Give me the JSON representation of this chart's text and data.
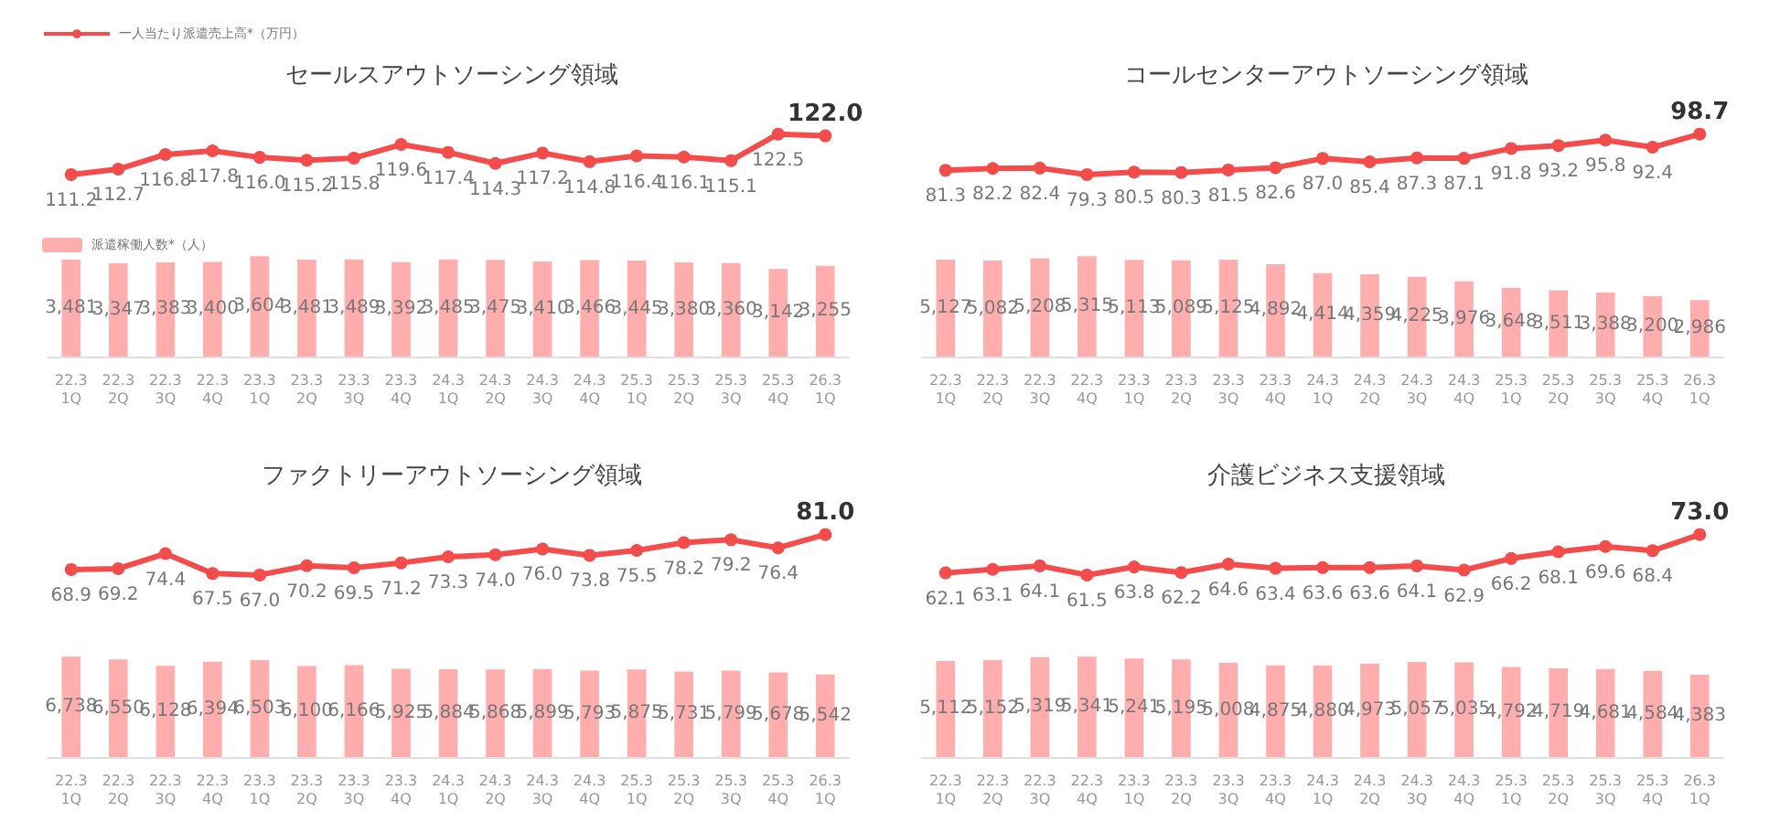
{
  "chart_data": [
    {
      "type": "line",
      "title": "セールスアウトソーシング領域",
      "categories": [
        null,
        null,
        null,
        null,
        null,
        null,
        null,
        null,
        null,
        null,
        null,
        null,
        null,
        null,
        null,
        null,
        null
      ],
      "legend": "top left",
      "tick_labels": false,
      "series": [
        {
          "name": "一人当たり派遣売上高*（万円）",
          "color": "#f44b4b",
          "marker": "circle",
          "values": [
            111.2,
            112.7,
            116.8,
            117.8,
            116.0,
            115.2,
            115.8,
            119.6,
            117.4,
            114.3,
            117.2,
            114.8,
            116.4,
            116.1,
            115.1,
            122.5,
            122.0
          ],
          "value_labels": [
            "111.2",
            "112.7",
            "116.8",
            "117.8",
            "116.0",
            "115.2",
            "115.8",
            "119.6",
            "117.4",
            "114.3",
            "117.2",
            "114.8",
            "116.4",
            "116.1",
            "115.1",
            "122.5",
            "122.0"
          ]
        }
      ]
    },
    {
      "type": "bar",
      "categories": [
        "22.3\n1Q",
        "22.3\n2Q",
        "22.3\n3Q",
        "22.3\n4Q",
        "23.3\n1Q",
        "23.3\n2Q",
        "23.3\n3Q",
        "23.3\n4Q",
        "24.3\n1Q",
        "24.3\n2Q",
        "24.3\n3Q",
        "24.3\n4Q",
        "25.3\n1Q",
        "25.3\n2Q",
        "25.3\n3Q",
        "25.3\n4Q",
        "26.3\n1Q"
      ],
      "legend": "top left",
      "tick_labels": "x",
      "series": [
        {
          "name": "派遣稼働人数*（人）",
          "color": "#ffadad",
          "values": [
            3481,
            3347,
            3383,
            3400,
            3604,
            3481,
            3489,
            3392,
            3485,
            3475,
            3410,
            3466,
            3445,
            3380,
            3360,
            3142,
            3255
          ],
          "value_labels": [
            "3,481",
            "3,347",
            "3,383",
            "3,400",
            "3,604",
            "3,481",
            "3,489",
            "3,392",
            "3,485",
            "3,475",
            "3,410",
            "3,466",
            "3,445",
            "3,380",
            "3,360",
            "3,142",
            "3,255"
          ]
        }
      ]
    },
    {
      "type": "line",
      "title": "コールセンターアウトソーシング領域",
      "categories": [
        null,
        null,
        null,
        null,
        null,
        null,
        null,
        null,
        null,
        null,
        null,
        null,
        null,
        null,
        null,
        null,
        null
      ],
      "tick_labels": false,
      "series": [
        {
          "color": "#f44b4b",
          "marker": "circle",
          "values": [
            81.3,
            82.2,
            82.4,
            79.3,
            80.5,
            80.3,
            81.5,
            82.6,
            87.0,
            85.4,
            87.3,
            87.1,
            91.8,
            93.2,
            95.8,
            92.4,
            98.7
          ],
          "value_labels": [
            "81.3",
            "82.2",
            "82.4",
            "79.3",
            "80.5",
            "80.3",
            "81.5",
            "82.6",
            "87.0",
            "85.4",
            "87.3",
            "87.1",
            "91.8",
            "93.2",
            "95.8",
            "92.4",
            "98.7"
          ]
        }
      ]
    },
    {
      "type": "bar",
      "categories": [
        "22.3\n1Q",
        "22.3\n2Q",
        "22.3\n3Q",
        "22.3\n4Q",
        "23.3\n1Q",
        "23.3\n2Q",
        "23.3\n3Q",
        "23.3\n4Q",
        "24.3\n1Q",
        "24.3\n2Q",
        "24.3\n3Q",
        "24.3\n4Q",
        "25.3\n1Q",
        "25.3\n2Q",
        "25.3\n3Q",
        "25.3\n4Q",
        "26.3\n1Q"
      ],
      "tick_labels": "x",
      "series": [
        {
          "color": "#ffadad",
          "values": [
            5127,
            5082,
            5208,
            5315,
            5113,
            5089,
            5125,
            4892,
            4414,
            4359,
            4225,
            3976,
            3648,
            3511,
            3388,
            3200,
            2986
          ],
          "value_labels": [
            "5,127",
            "5,082",
            "5,208",
            "5,315",
            "5,113",
            "5,089",
            "5,125",
            "4,892",
            "4,414",
            "4,359",
            "4,225",
            "3,976",
            "3,648",
            "3,511",
            "3,388",
            "3,200",
            "2,986"
          ]
        }
      ]
    },
    {
      "type": "line",
      "title": "ファクトリーアウトソーシング領域",
      "categories": [
        null,
        null,
        null,
        null,
        null,
        null,
        null,
        null,
        null,
        null,
        null,
        null,
        null,
        null,
        null,
        null,
        null
      ],
      "tick_labels": false,
      "series": [
        {
          "color": "#f44b4b",
          "marker": "circle",
          "values": [
            68.9,
            69.2,
            74.4,
            67.5,
            67.0,
            70.2,
            69.5,
            71.2,
            73.3,
            74.0,
            76.0,
            73.8,
            75.5,
            78.2,
            79.2,
            76.4,
            81.0
          ],
          "value_labels": [
            "68.9",
            "69.2",
            "74.4",
            "67.5",
            "67.0",
            "70.2",
            "69.5",
            "71.2",
            "73.3",
            "74.0",
            "76.0",
            "73.8",
            "75.5",
            "78.2",
            "79.2",
            "76.4",
            "81.0"
          ]
        }
      ]
    },
    {
      "type": "bar",
      "categories": [
        "22.3\n1Q",
        "22.3\n2Q",
        "22.3\n3Q",
        "22.3\n4Q",
        "23.3\n1Q",
        "23.3\n2Q",
        "23.3\n3Q",
        "23.3\n4Q",
        "24.3\n1Q",
        "24.3\n2Q",
        "24.3\n3Q",
        "24.3\n4Q",
        "25.3\n1Q",
        "25.3\n2Q",
        "25.3\n3Q",
        "25.3\n4Q",
        "26.3\n1Q"
      ],
      "tick_labels": "x",
      "series": [
        {
          "color": "#ffadad",
          "values": [
            6738,
            6550,
            6128,
            6394,
            6503,
            6100,
            6166,
            5925,
            5884,
            5868,
            5899,
            5793,
            5875,
            5731,
            5799,
            5678,
            5542
          ],
          "value_labels": [
            "6,738",
            "6,550",
            "6,128",
            "6,394",
            "6,503",
            "6,100",
            "6,166",
            "5,925",
            "5,884",
            "5,868",
            "5,899",
            "5,793",
            "5,875",
            "5,731",
            "5,799",
            "5,678",
            "5,542"
          ]
        }
      ]
    },
    {
      "type": "line",
      "title": "介護ビジネス支援領域",
      "categories": [
        null,
        null,
        null,
        null,
        null,
        null,
        null,
        null,
        null,
        null,
        null,
        null,
        null,
        null,
        null,
        null,
        null
      ],
      "tick_labels": false,
      "series": [
        {
          "color": "#f44b4b",
          "marker": "circle",
          "values": [
            62.1,
            63.1,
            64.1,
            61.5,
            63.8,
            62.2,
            64.6,
            63.4,
            63.6,
            63.6,
            64.1,
            62.9,
            66.2,
            68.1,
            69.6,
            68.4,
            73.0
          ],
          "value_labels": [
            "62.1",
            "63.1",
            "64.1",
            "61.5",
            "63.8",
            "62.2",
            "64.6",
            "63.4",
            "63.6",
            "63.6",
            "64.1",
            "62.9",
            "66.2",
            "68.1",
            "69.6",
            "68.4",
            "73.0"
          ]
        }
      ]
    },
    {
      "type": "bar",
      "categories": [
        "22.3\n1Q",
        "22.3\n2Q",
        "22.3\n3Q",
        "22.3\n4Q",
        "23.3\n1Q",
        "23.3\n2Q",
        "23.3\n3Q",
        "23.3\n4Q",
        "24.3\n1Q",
        "24.3\n2Q",
        "24.3\n3Q",
        "24.3\n4Q",
        "25.3\n1Q",
        "25.3\n2Q",
        "25.3\n3Q",
        "25.3\n4Q",
        "26.3\n1Q"
      ],
      "tick_labels": "x",
      "series": [
        {
          "color": "#ffadad",
          "values": [
            5112,
            5152,
            5319,
            5341,
            5241,
            5195,
            5008,
            4875,
            4880,
            4973,
            5057,
            5035,
            4792,
            4719,
            4681,
            4584,
            4383
          ],
          "value_labels": [
            "5,112",
            "5,152",
            "5,319",
            "5,341",
            "5,241",
            "5,195",
            "5,008",
            "4,875",
            "4,880",
            "4,973",
            "5,057",
            "5,035",
            "4,792",
            "4,719",
            "4,681",
            "4,584",
            "4,383"
          ]
        }
      ]
    }
  ]
}
